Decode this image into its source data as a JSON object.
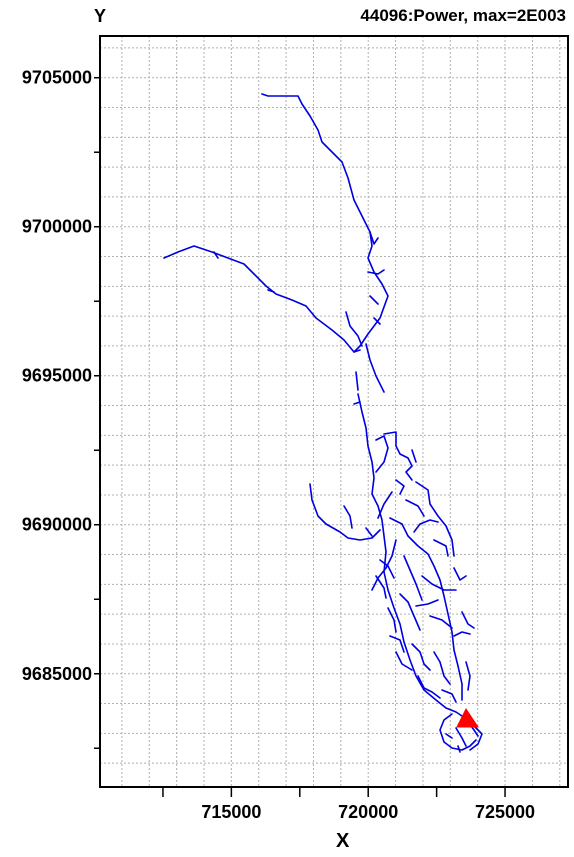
{
  "header": {
    "y_label": "Y",
    "title": "44096:Power, max=2E003"
  },
  "axes": {
    "x_label": "X",
    "x_ticks": [
      "715000",
      "720000",
      "725000"
    ],
    "y_ticks": [
      "9705000",
      "9700000",
      "9695000",
      "9690000",
      "9685000"
    ],
    "x_range": [
      710200,
      727300
    ],
    "y_range": [
      9681200,
      9706400
    ],
    "grid": true
  },
  "colors": {
    "network": "#0000e0",
    "outlet_marker": "#ff0000",
    "grid": "#b0b0b0",
    "frame": "#000000"
  },
  "layers": {
    "network_name": "stream-network",
    "marker_name": "outlet-triangle"
  }
}
